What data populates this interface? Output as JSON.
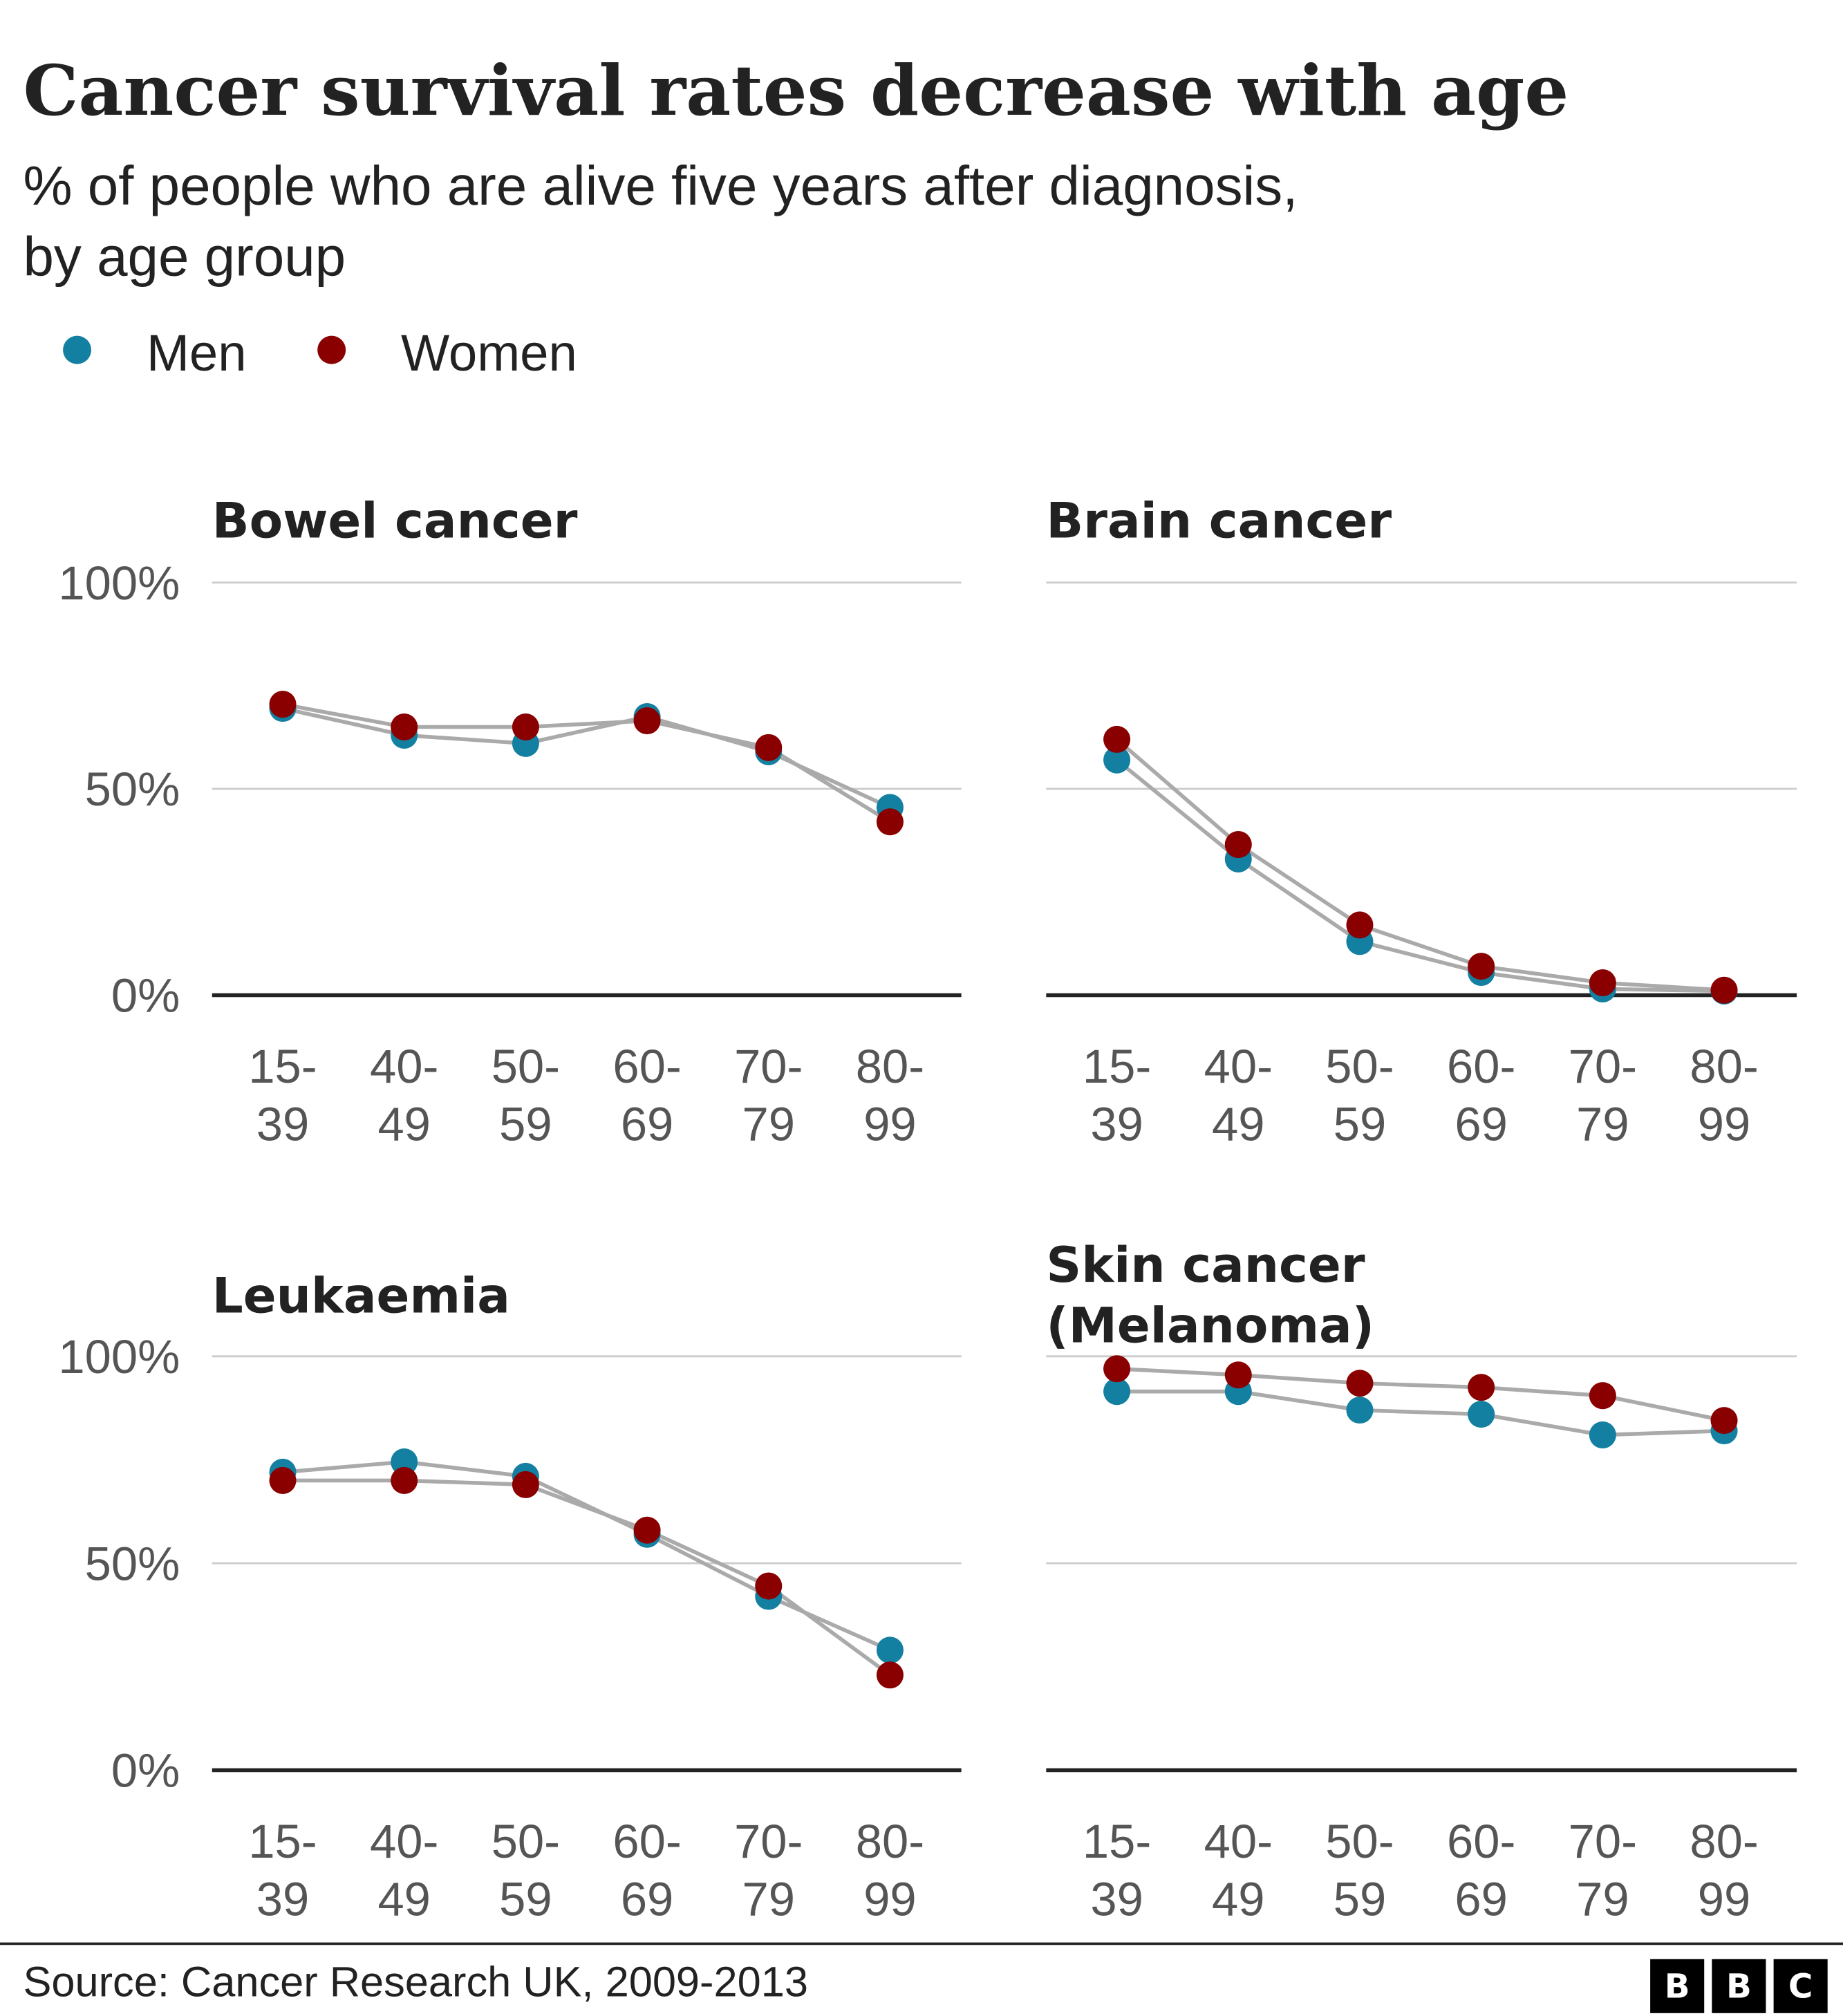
{
  "title": "Cancer survival rates decrease with age",
  "subtitle_line1": "% of people who are alive five years after diagnosis,",
  "subtitle_line2": "by age group",
  "legend": [
    {
      "label": "Men",
      "color": "#1380a1"
    },
    {
      "label": "Women",
      "color": "#8a0000"
    }
  ],
  "source": "Source: Cancer Research UK, 2009-2013",
  "logo": [
    "B",
    "B",
    "C"
  ],
  "chart_data": [
    {
      "type": "line",
      "title_lines": [
        "Bowel cancer"
      ],
      "categories": [
        [
          "15-",
          "39"
        ],
        [
          "40-",
          "49"
        ],
        [
          "50-",
          "59"
        ],
        [
          "60-",
          "69"
        ],
        [
          "70-",
          "79"
        ],
        [
          "80-",
          "99"
        ]
      ],
      "yticks": [
        "0%",
        "50%",
        "100%"
      ],
      "ylim": [
        0,
        100
      ],
      "grid": true,
      "series": [
        {
          "name": "Men",
          "values": [
            69.5,
            63,
            61,
            67.5,
            59,
            45.5
          ]
        },
        {
          "name": "Women",
          "values": [
            70.5,
            65,
            65,
            66.5,
            60,
            42
          ]
        }
      ]
    },
    {
      "type": "line",
      "title_lines": [
        "Brain cancer"
      ],
      "categories": [
        [
          "15-",
          "39"
        ],
        [
          "40-",
          "49"
        ],
        [
          "50-",
          "59"
        ],
        [
          "60-",
          "69"
        ],
        [
          "70-",
          "79"
        ],
        [
          "80-",
          "99"
        ]
      ],
      "yticks": [],
      "ylim": [
        0,
        100
      ],
      "grid": true,
      "series": [
        {
          "name": "Men",
          "values": [
            57,
            33,
            13,
            5.5,
            1.5,
            1
          ]
        },
        {
          "name": "Women",
          "values": [
            62,
            36.5,
            17,
            7,
            3,
            1.2
          ]
        }
      ]
    },
    {
      "type": "line",
      "title_lines": [
        "Leukaemia"
      ],
      "categories": [
        [
          "15-",
          "39"
        ],
        [
          "40-",
          "49"
        ],
        [
          "50-",
          "59"
        ],
        [
          "60-",
          "69"
        ],
        [
          "70-",
          "79"
        ],
        [
          "80-",
          "99"
        ]
      ],
      "yticks": [
        "0%",
        "50%",
        "100%"
      ],
      "ylim": [
        0,
        100
      ],
      "grid": true,
      "series": [
        {
          "name": "Men",
          "values": [
            72,
            74.5,
            71,
            57,
            42,
            29
          ]
        },
        {
          "name": "Women",
          "values": [
            70,
            70,
            69,
            58,
            44.5,
            23
          ]
        }
      ]
    },
    {
      "type": "line",
      "title_lines": [
        "Skin cancer",
        "(Melanoma)"
      ],
      "categories": [
        [
          "15-",
          "39"
        ],
        [
          "40-",
          "49"
        ],
        [
          "50-",
          "59"
        ],
        [
          "60-",
          "69"
        ],
        [
          "70-",
          "79"
        ],
        [
          "80-",
          "99"
        ]
      ],
      "yticks": [],
      "ylim": [
        0,
        100
      ],
      "grid": true,
      "series": [
        {
          "name": "Men",
          "values": [
            91.5,
            91.5,
            87,
            86,
            81,
            82
          ]
        },
        {
          "name": "Women",
          "values": [
            97,
            95.5,
            93.5,
            92.5,
            90.5,
            84.5
          ]
        }
      ]
    }
  ]
}
